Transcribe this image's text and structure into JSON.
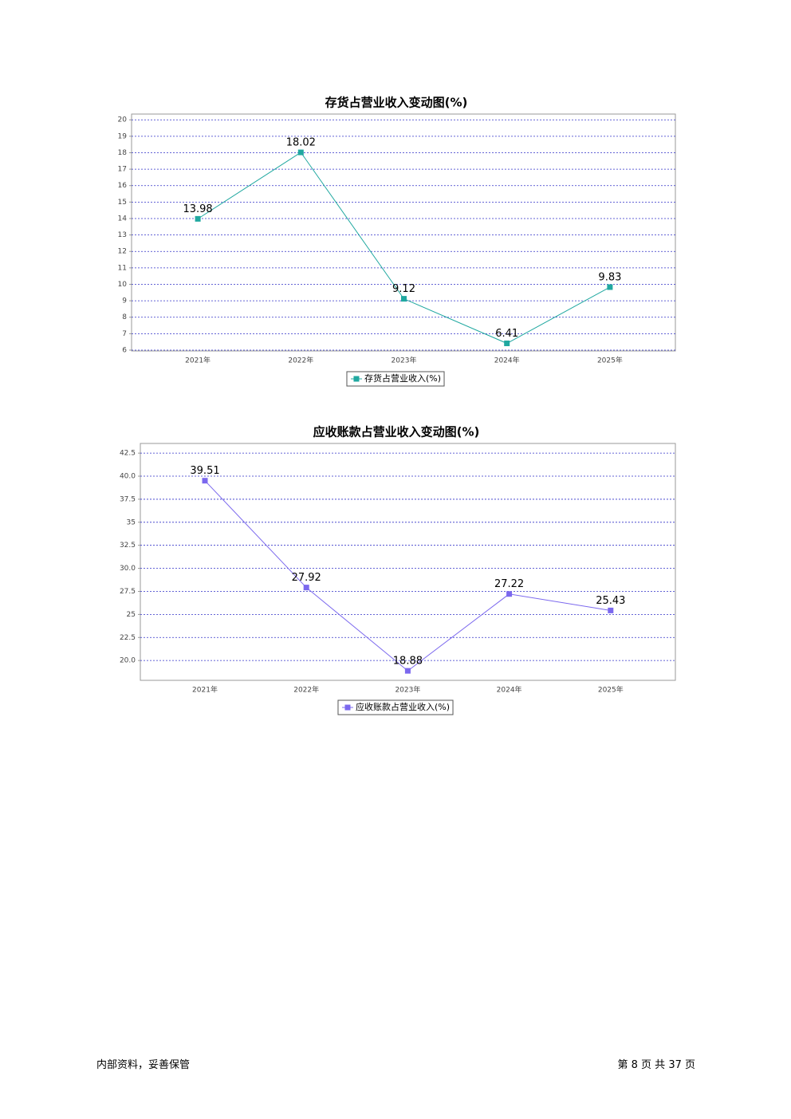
{
  "chart_data": [
    {
      "type": "line",
      "title": "存货占营业收入变动图(%)",
      "categories": [
        "2021年",
        "2022年",
        "2023年",
        "2024年",
        "2025年"
      ],
      "series": [
        {
          "name": "存货占营业收入(%)",
          "color": "#20a8a0",
          "values": [
            13.98,
            18.02,
            9.12,
            6.41,
            9.83
          ]
        }
      ],
      "ylim": [
        5.95,
        20.35
      ],
      "yticks": [
        6,
        7,
        8,
        9,
        10,
        11,
        12,
        13,
        14,
        15,
        16,
        17,
        18,
        19,
        20
      ],
      "grid": true
    },
    {
      "type": "line",
      "title": "应收账款占营业收入变动图(%)",
      "categories": [
        "2021年",
        "2022年",
        "2023年",
        "2024年",
        "2025年"
      ],
      "series": [
        {
          "name": "应收账款占营业收入(%)",
          "color": "#7b68ee",
          "values": [
            39.51,
            27.92,
            18.88,
            27.22,
            25.43
          ]
        }
      ],
      "ylim": [
        17.85,
        43.55
      ],
      "yticks": [
        {
          "value": 20,
          "label": "20.0"
        },
        22.5,
        25,
        27.5,
        {
          "value": 30,
          "label": "30.0"
        },
        32.5,
        35,
        37.5,
        {
          "value": 40,
          "label": "40.0"
        },
        42.5
      ],
      "grid": true
    }
  ],
  "footer": {
    "left": "内部资料，妥善保管",
    "right": "第 8 页 共 37 页"
  }
}
